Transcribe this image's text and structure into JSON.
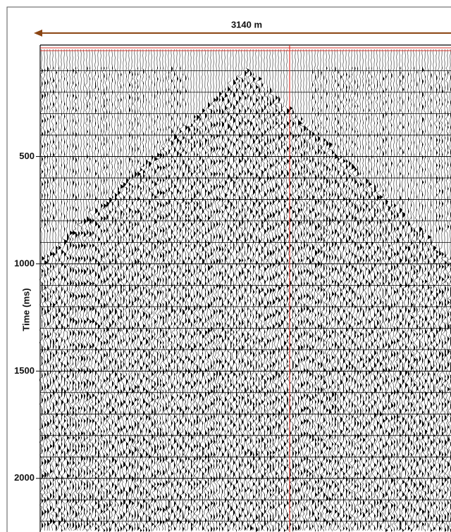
{
  "chart_data": {
    "type": "seismic",
    "annotation": "3140 m",
    "y_label": "Time (ms)",
    "ylim": [
      0,
      2250
    ],
    "yticks": [
      500,
      1000,
      1500,
      2000
    ],
    "minor_yticks": [
      100,
      200,
      300,
      400,
      600,
      700,
      800,
      900,
      1100,
      1200,
      1300,
      1400,
      1600,
      1700,
      1800,
      1900,
      2100,
      2200
    ],
    "grid": true,
    "trace_color": "#000000",
    "arrow_color": "#8b4513",
    "marker_color": "#d9342b"
  }
}
